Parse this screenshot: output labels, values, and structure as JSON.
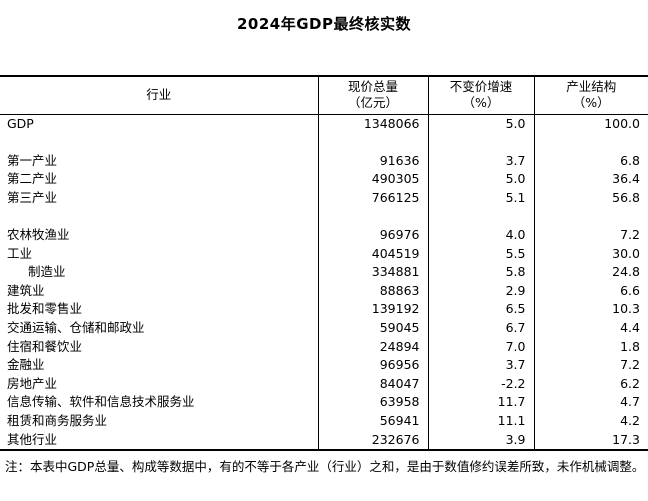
{
  "title": "2024年GDP最终核实数",
  "table": {
    "columns": [
      {
        "line1": "行业",
        "line2": ""
      },
      {
        "line1": "现价总量",
        "line2": "（亿元）"
      },
      {
        "line1": "不变价增速",
        "line2": "（%）"
      },
      {
        "line1": "产业结构",
        "line2": "（%）"
      }
    ],
    "rows": [
      {
        "blank": false,
        "indent": false,
        "name": "GDP",
        "value": "1348066",
        "growth": "5.0",
        "share": "100.0"
      },
      {
        "blank": true
      },
      {
        "blank": false,
        "indent": false,
        "name": "第一产业",
        "value": "91636",
        "growth": "3.7",
        "share": "6.8"
      },
      {
        "blank": false,
        "indent": false,
        "name": "第二产业",
        "value": "490305",
        "growth": "5.0",
        "share": "36.4"
      },
      {
        "blank": false,
        "indent": false,
        "name": "第三产业",
        "value": "766125",
        "growth": "5.1",
        "share": "56.8"
      },
      {
        "blank": true
      },
      {
        "blank": false,
        "indent": false,
        "name": "农林牧渔业",
        "value": "96976",
        "growth": "4.0",
        "share": "7.2"
      },
      {
        "blank": false,
        "indent": false,
        "name": "工业",
        "value": "404519",
        "growth": "5.5",
        "share": "30.0"
      },
      {
        "blank": false,
        "indent": true,
        "name": "制造业",
        "value": "334881",
        "growth": "5.8",
        "share": "24.8"
      },
      {
        "blank": false,
        "indent": false,
        "name": "建筑业",
        "value": "88863",
        "growth": "2.9",
        "share": "6.6"
      },
      {
        "blank": false,
        "indent": false,
        "name": "批发和零售业",
        "value": "139192",
        "growth": "6.5",
        "share": "10.3"
      },
      {
        "blank": false,
        "indent": false,
        "name": "交通运输、仓储和邮政业",
        "value": "59045",
        "growth": "6.7",
        "share": "4.4"
      },
      {
        "blank": false,
        "indent": false,
        "name": "住宿和餐饮业",
        "value": "24894",
        "growth": "7.0",
        "share": "1.8"
      },
      {
        "blank": false,
        "indent": false,
        "name": "金融业",
        "value": "96956",
        "growth": "3.7",
        "share": "7.2"
      },
      {
        "blank": false,
        "indent": false,
        "name": "房地产业",
        "value": "84047",
        "growth": "-2.2",
        "share": "6.2"
      },
      {
        "blank": false,
        "indent": false,
        "name": "信息传输、软件和信息技术服务业",
        "value": "63958",
        "growth": "11.7",
        "share": "4.7"
      },
      {
        "blank": false,
        "indent": false,
        "name": "租赁和商务服务业",
        "value": "56941",
        "growth": "11.1",
        "share": "4.2"
      },
      {
        "blank": false,
        "indent": false,
        "name": "其他行业",
        "value": "232676",
        "growth": "3.9",
        "share": "17.3"
      }
    ]
  },
  "note": "注：本表中GDP总量、构成等数据中，有的不等于各产业（行业）之和，是由于数值修约误差所致，未作机械调整。"
}
